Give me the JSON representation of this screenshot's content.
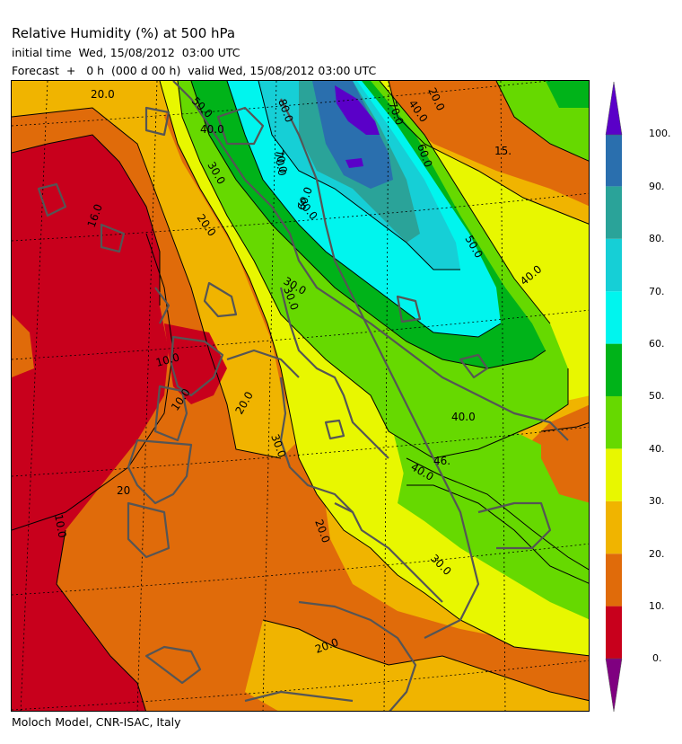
{
  "title": "Relative Humidity (%) at 500 hPa",
  "initial_time": "initial time  Wed, 15/08/2012  03:00 UTC",
  "forecast": "Forecast  +   0 h  (000 d 00 h)  valid Wed, 15/08/2012 03:00 UTC",
  "credit": "Moloch Model, CNR-ISAC, Italy",
  "colorbar": {
    "labels": [
      "100.",
      "90.",
      "80.",
      "70.",
      "60.",
      "50.",
      "40.",
      "30.",
      "20.",
      "10.",
      "0."
    ],
    "colors": [
      "#c8001c",
      "#e06b0a",
      "#f0b400",
      "#e8f700",
      "#66d900",
      "#00b319",
      "#00f5ee",
      "#16cfd6",
      "#2aa399",
      "#2a6fae",
      "#5a00c8",
      "#7f0080"
    ]
  },
  "contour_labels": [
    "20.0",
    "50.0",
    "40.0",
    "30.0",
    "80.0",
    "70.0",
    "90.0",
    "40.0",
    "70.0",
    "60.0",
    "20.0",
    "15.",
    "16.0",
    "20.0",
    "30.0",
    "60.0",
    "70.0",
    "50.0",
    "40.0",
    "30.0",
    "10.0",
    "10.0",
    "20.0",
    "30.0",
    "40.0",
    "46.",
    "40.0",
    "20",
    "10.0",
    "20.0",
    "30.0",
    "20.0"
  ]
}
